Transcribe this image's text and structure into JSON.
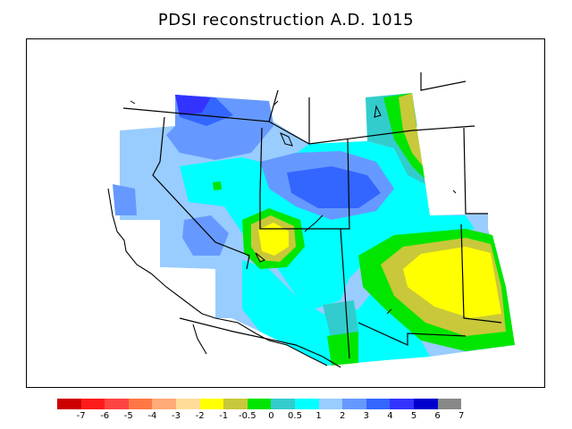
{
  "title": "PDSI reconstruction A.D. 1015",
  "legend": {
    "colors": [
      "#cc0000",
      "#ff1a1a",
      "#ff4444",
      "#ff7744",
      "#ffaa77",
      "#ffdd99",
      "#ffff00",
      "#c8c83a",
      "#00e600",
      "#33cccc",
      "#00ffff",
      "#99ccff",
      "#6699ff",
      "#3366ff",
      "#3333ff",
      "#0000cc",
      "#888888"
    ],
    "ticks": [
      "-7",
      "-6",
      "-5",
      "-4",
      "-3",
      "-2",
      "-1",
      "-0.5",
      "0",
      "0.5",
      "1",
      "2",
      "3",
      "4",
      "5",
      "6",
      "7"
    ]
  },
  "fields": {
    "yellow": "#ffff00",
    "olive": "#c8c83a",
    "green": "#00e600",
    "teal": "#33cccc",
    "cyan": "#00ffff",
    "light_blue": "#99ccff",
    "mid_blue": "#6699ff",
    "blue": "#3366ff",
    "deep_blue": "#3333ff"
  }
}
